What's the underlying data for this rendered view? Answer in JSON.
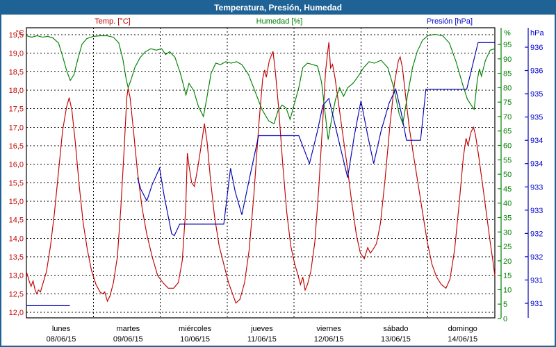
{
  "window": {
    "title": "Temperatura, Presión, Humedad"
  },
  "legend": {
    "temp": "Temp. [°C]",
    "humidity": "Humedad [%]",
    "pressure": "Presión [hPa]"
  },
  "colors": {
    "titlebar_and_border": "#1e6296",
    "temp_line": "#c00000",
    "humidity_line": "#008000",
    "pressure_line": "#0000b4",
    "grid": "#000000"
  },
  "axes": {
    "temp_unit": "°C",
    "humidity_unit": "%",
    "pressure_unit": "hPa",
    "temp_ticks": [
      "19,5",
      "19,0",
      "18,5",
      "18,0",
      "17,5",
      "17,0",
      "16,5",
      "16,0",
      "15,5",
      "15,0",
      "14,5",
      "14,0",
      "13,5",
      "13,0",
      "12,5",
      "12,0"
    ],
    "humidity_ticks": [
      "95",
      "90",
      "85",
      "80",
      "75",
      "70",
      "65",
      "60",
      "55",
      "50",
      "45",
      "40",
      "35",
      "30",
      "25",
      "20",
      "15",
      "10",
      "5",
      "0"
    ],
    "pressure_ticks": [
      "936",
      "936",
      "935",
      "935",
      "934",
      "934",
      "933",
      "933",
      "932",
      "932",
      "931",
      "931"
    ],
    "x_days": [
      {
        "name": "lunes",
        "date": "08/06/15"
      },
      {
        "name": "martes",
        "date": "09/06/15"
      },
      {
        "name": "miércoles",
        "date": "10/06/15"
      },
      {
        "name": "jueves",
        "date": "11/06/15"
      },
      {
        "name": "viernes",
        "date": "12/06/15"
      },
      {
        "name": "sábado",
        "date": "13/06/15"
      },
      {
        "name": "domingo",
        "date": "14/06/15"
      }
    ]
  },
  "chart_data": {
    "type": "line",
    "title": "Temperatura, Presión, Humedad",
    "x_unit": "days since lunes 08/06/15 00:00",
    "x_range_days": [
      0,
      7
    ],
    "temp_axis_range_c": [
      12.0,
      19.5
    ],
    "humidity_axis_range_pct": [
      0,
      95
    ],
    "pressure_axis_range_hpa": [
      930.9,
      936.7
    ],
    "grid": "dashed, 0.5 °C steps and daily verticals",
    "legend_position": "top",
    "series": [
      {
        "name": "Temp. [°C]",
        "axis": "temp",
        "color": "#c00000",
        "points": [
          [
            0.0,
            13.1
          ],
          [
            0.04,
            12.85
          ],
          [
            0.07,
            12.7
          ],
          [
            0.1,
            12.85
          ],
          [
            0.13,
            12.6
          ],
          [
            0.155,
            12.5
          ],
          [
            0.18,
            12.6
          ],
          [
            0.21,
            12.55
          ],
          [
            0.25,
            12.8
          ],
          [
            0.3,
            13.1
          ],
          [
            0.36,
            13.8
          ],
          [
            0.42,
            14.7
          ],
          [
            0.48,
            15.8
          ],
          [
            0.54,
            16.9
          ],
          [
            0.6,
            17.55
          ],
          [
            0.64,
            17.8
          ],
          [
            0.68,
            17.45
          ],
          [
            0.73,
            16.6
          ],
          [
            0.79,
            15.4
          ],
          [
            0.85,
            14.4
          ],
          [
            0.91,
            13.7
          ],
          [
            0.97,
            13.15
          ],
          [
            1.04,
            12.75
          ],
          [
            1.1,
            12.55
          ],
          [
            1.14,
            12.5
          ],
          [
            1.17,
            12.55
          ],
          [
            1.21,
            12.3
          ],
          [
            1.25,
            12.45
          ],
          [
            1.3,
            12.8
          ],
          [
            1.36,
            13.5
          ],
          [
            1.41,
            14.8
          ],
          [
            1.46,
            16.4
          ],
          [
            1.5,
            17.8
          ],
          [
            1.52,
            18.05
          ],
          [
            1.55,
            17.8
          ],
          [
            1.6,
            16.9
          ],
          [
            1.66,
            15.8
          ],
          [
            1.73,
            14.8
          ],
          [
            1.8,
            14.1
          ],
          [
            1.88,
            13.5
          ],
          [
            1.96,
            13.0
          ],
          [
            2.04,
            12.8
          ],
          [
            2.12,
            12.65
          ],
          [
            2.2,
            12.65
          ],
          [
            2.27,
            12.8
          ],
          [
            2.33,
            13.4
          ],
          [
            2.38,
            14.8
          ],
          [
            2.405,
            16.3
          ],
          [
            2.43,
            15.95
          ],
          [
            2.47,
            15.5
          ],
          [
            2.51,
            15.4
          ],
          [
            2.56,
            15.9
          ],
          [
            2.62,
            16.6
          ],
          [
            2.66,
            17.1
          ],
          [
            2.7,
            16.6
          ],
          [
            2.75,
            15.6
          ],
          [
            2.81,
            14.6
          ],
          [
            2.88,
            13.8
          ],
          [
            2.95,
            13.3
          ],
          [
            3.02,
            12.8
          ],
          [
            3.08,
            12.5
          ],
          [
            3.13,
            12.25
          ],
          [
            3.19,
            12.35
          ],
          [
            3.26,
            12.8
          ],
          [
            3.33,
            13.7
          ],
          [
            3.4,
            15.2
          ],
          [
            3.47,
            17.0
          ],
          [
            3.53,
            18.3
          ],
          [
            3.56,
            18.55
          ],
          [
            3.585,
            18.35
          ],
          [
            3.63,
            18.8
          ],
          [
            3.685,
            19.05
          ],
          [
            3.72,
            18.5
          ],
          [
            3.77,
            17.5
          ],
          [
            3.83,
            16.0
          ],
          [
            3.89,
            14.7
          ],
          [
            3.95,
            13.8
          ],
          [
            4.01,
            13.3
          ],
          [
            4.06,
            13.0
          ],
          [
            4.095,
            12.75
          ],
          [
            4.13,
            12.95
          ],
          [
            4.165,
            12.6
          ],
          [
            4.2,
            12.75
          ],
          [
            4.25,
            13.1
          ],
          [
            4.31,
            13.9
          ],
          [
            4.37,
            15.4
          ],
          [
            4.43,
            17.2
          ],
          [
            4.47,
            18.5
          ],
          [
            4.5,
            19.0
          ],
          [
            4.52,
            19.3
          ],
          [
            4.545,
            18.6
          ],
          [
            4.575,
            18.7
          ],
          [
            4.61,
            18.35
          ],
          [
            4.66,
            17.7
          ],
          [
            4.72,
            16.9
          ],
          [
            4.79,
            16.0
          ],
          [
            4.86,
            15.0
          ],
          [
            4.93,
            14.1
          ],
          [
            4.99,
            13.6
          ],
          [
            5.05,
            13.45
          ],
          [
            5.1,
            13.75
          ],
          [
            5.14,
            13.6
          ],
          [
            5.18,
            13.7
          ],
          [
            5.23,
            13.85
          ],
          [
            5.29,
            14.4
          ],
          [
            5.36,
            15.6
          ],
          [
            5.43,
            17.0
          ],
          [
            5.5,
            18.2
          ],
          [
            5.56,
            18.8
          ],
          [
            5.585,
            18.9
          ],
          [
            5.62,
            18.6
          ],
          [
            5.67,
            17.8
          ],
          [
            5.72,
            17.0
          ],
          [
            5.78,
            16.3
          ],
          [
            5.85,
            15.5
          ],
          [
            5.92,
            14.7
          ],
          [
            5.99,
            13.9
          ],
          [
            6.06,
            13.3
          ],
          [
            6.13,
            12.95
          ],
          [
            6.2,
            12.75
          ],
          [
            6.27,
            12.65
          ],
          [
            6.33,
            12.9
          ],
          [
            6.4,
            13.7
          ],
          [
            6.47,
            15.0
          ],
          [
            6.53,
            16.2
          ],
          [
            6.57,
            16.7
          ],
          [
            6.6,
            16.5
          ],
          [
            6.64,
            16.85
          ],
          [
            6.68,
            17.0
          ],
          [
            6.71,
            16.8
          ],
          [
            6.76,
            16.2
          ],
          [
            6.82,
            15.4
          ],
          [
            6.88,
            14.6
          ],
          [
            6.93,
            13.9
          ],
          [
            6.97,
            13.4
          ],
          [
            7.0,
            13.0
          ]
        ]
      },
      {
        "name": "Humedad [%]",
        "axis": "humidity",
        "color": "#008000",
        "points": [
          [
            0.0,
            98
          ],
          [
            0.08,
            97.5
          ],
          [
            0.16,
            98
          ],
          [
            0.24,
            97.5
          ],
          [
            0.32,
            97.8
          ],
          [
            0.4,
            97.2
          ],
          [
            0.48,
            95.5
          ],
          [
            0.54,
            91
          ],
          [
            0.6,
            86
          ],
          [
            0.655,
            82.5
          ],
          [
            0.71,
            84.5
          ],
          [
            0.77,
            90
          ],
          [
            0.83,
            95
          ],
          [
            0.9,
            97
          ],
          [
            1.0,
            97.8
          ],
          [
            1.1,
            98
          ],
          [
            1.2,
            98
          ],
          [
            1.3,
            97.5
          ],
          [
            1.38,
            95.5
          ],
          [
            1.44,
            90
          ],
          [
            1.49,
            83
          ],
          [
            1.52,
            80
          ],
          [
            1.56,
            82.5
          ],
          [
            1.62,
            87
          ],
          [
            1.7,
            90.5
          ],
          [
            1.78,
            92.5
          ],
          [
            1.86,
            93.5
          ],
          [
            1.94,
            93
          ],
          [
            2.02,
            93.5
          ],
          [
            2.08,
            91.5
          ],
          [
            2.14,
            92.5
          ],
          [
            2.22,
            90.5
          ],
          [
            2.3,
            85
          ],
          [
            2.385,
            77.5
          ],
          [
            2.43,
            81.5
          ],
          [
            2.5,
            79
          ],
          [
            2.57,
            73.5
          ],
          [
            2.645,
            70
          ],
          [
            2.7,
            77
          ],
          [
            2.76,
            85
          ],
          [
            2.83,
            88.5
          ],
          [
            2.9,
            88
          ],
          [
            2.98,
            89
          ],
          [
            3.06,
            88.5
          ],
          [
            3.14,
            89
          ],
          [
            3.22,
            88
          ],
          [
            3.32,
            84.5
          ],
          [
            3.42,
            78.5
          ],
          [
            3.52,
            72.5
          ],
          [
            3.62,
            68.5
          ],
          [
            3.7,
            67.5
          ],
          [
            3.76,
            72
          ],
          [
            3.82,
            74
          ],
          [
            3.88,
            73
          ],
          [
            3.94,
            69
          ],
          [
            4.0,
            74
          ],
          [
            4.07,
            80
          ],
          [
            4.13,
            87
          ],
          [
            4.2,
            88.5
          ],
          [
            4.28,
            88
          ],
          [
            4.35,
            87.5
          ],
          [
            4.41,
            82
          ],
          [
            4.46,
            72
          ],
          [
            4.51,
            62
          ],
          [
            4.56,
            69
          ],
          [
            4.62,
            76
          ],
          [
            4.68,
            80
          ],
          [
            4.74,
            77
          ],
          [
            4.8,
            80
          ],
          [
            4.88,
            81.5
          ],
          [
            4.96,
            84
          ],
          [
            5.04,
            87
          ],
          [
            5.12,
            89
          ],
          [
            5.2,
            88.5
          ],
          [
            5.3,
            89.5
          ],
          [
            5.4,
            87
          ],
          [
            5.49,
            80
          ],
          [
            5.57,
            71
          ],
          [
            5.625,
            67.5
          ],
          [
            5.7,
            78
          ],
          [
            5.77,
            87
          ],
          [
            5.84,
            92.5
          ],
          [
            5.92,
            96.5
          ],
          [
            6.0,
            98
          ],
          [
            6.1,
            98.5
          ],
          [
            6.22,
            98
          ],
          [
            6.32,
            95.5
          ],
          [
            6.42,
            89
          ],
          [
            6.52,
            81
          ],
          [
            6.59,
            76
          ],
          [
            6.66,
            73.5
          ],
          [
            6.69,
            72.5
          ],
          [
            6.74,
            83
          ],
          [
            6.77,
            86.5
          ],
          [
            6.8,
            84
          ],
          [
            6.86,
            89.5
          ],
          [
            6.93,
            93
          ],
          [
            7.0,
            93.5
          ]
        ]
      },
      {
        "name": "Presión [hPa]",
        "axis": "pressure",
        "color": "#0000b4",
        "points": [
          [
            0.0,
            930.95
          ],
          [
            0.65,
            930.95
          ],
          null,
          [
            1.66,
            933.7
          ],
          [
            1.71,
            933.45
          ],
          [
            1.8,
            933.2
          ],
          [
            1.88,
            933.55
          ],
          [
            1.99,
            933.9
          ],
          [
            2.06,
            933.3
          ],
          [
            2.17,
            932.5
          ],
          [
            2.21,
            932.45
          ],
          [
            2.29,
            932.7
          ],
          [
            2.95,
            932.7
          ],
          [
            3.05,
            933.9
          ],
          [
            3.12,
            933.4
          ],
          [
            3.22,
            932.9
          ],
          [
            3.35,
            933.8
          ],
          [
            3.47,
            934.6
          ],
          [
            4.07,
            934.6
          ],
          [
            4.15,
            934.3
          ],
          [
            4.23,
            934.0
          ],
          [
            4.35,
            934.7
          ],
          [
            4.43,
            935.25
          ],
          [
            4.52,
            935.4
          ],
          [
            4.65,
            934.6
          ],
          [
            4.8,
            933.7
          ],
          [
            4.9,
            934.6
          ],
          [
            5.0,
            935.35
          ],
          [
            5.1,
            934.6
          ],
          [
            5.19,
            934.0
          ],
          [
            5.3,
            934.7
          ],
          [
            5.42,
            935.3
          ],
          [
            5.52,
            935.6
          ],
          [
            5.6,
            935.1
          ],
          [
            5.68,
            934.5
          ],
          [
            5.89,
            934.5
          ],
          [
            5.97,
            935.6
          ],
          [
            6.58,
            935.6
          ],
          [
            6.75,
            936.6
          ],
          [
            7.0,
            936.6
          ]
        ]
      }
    ]
  }
}
